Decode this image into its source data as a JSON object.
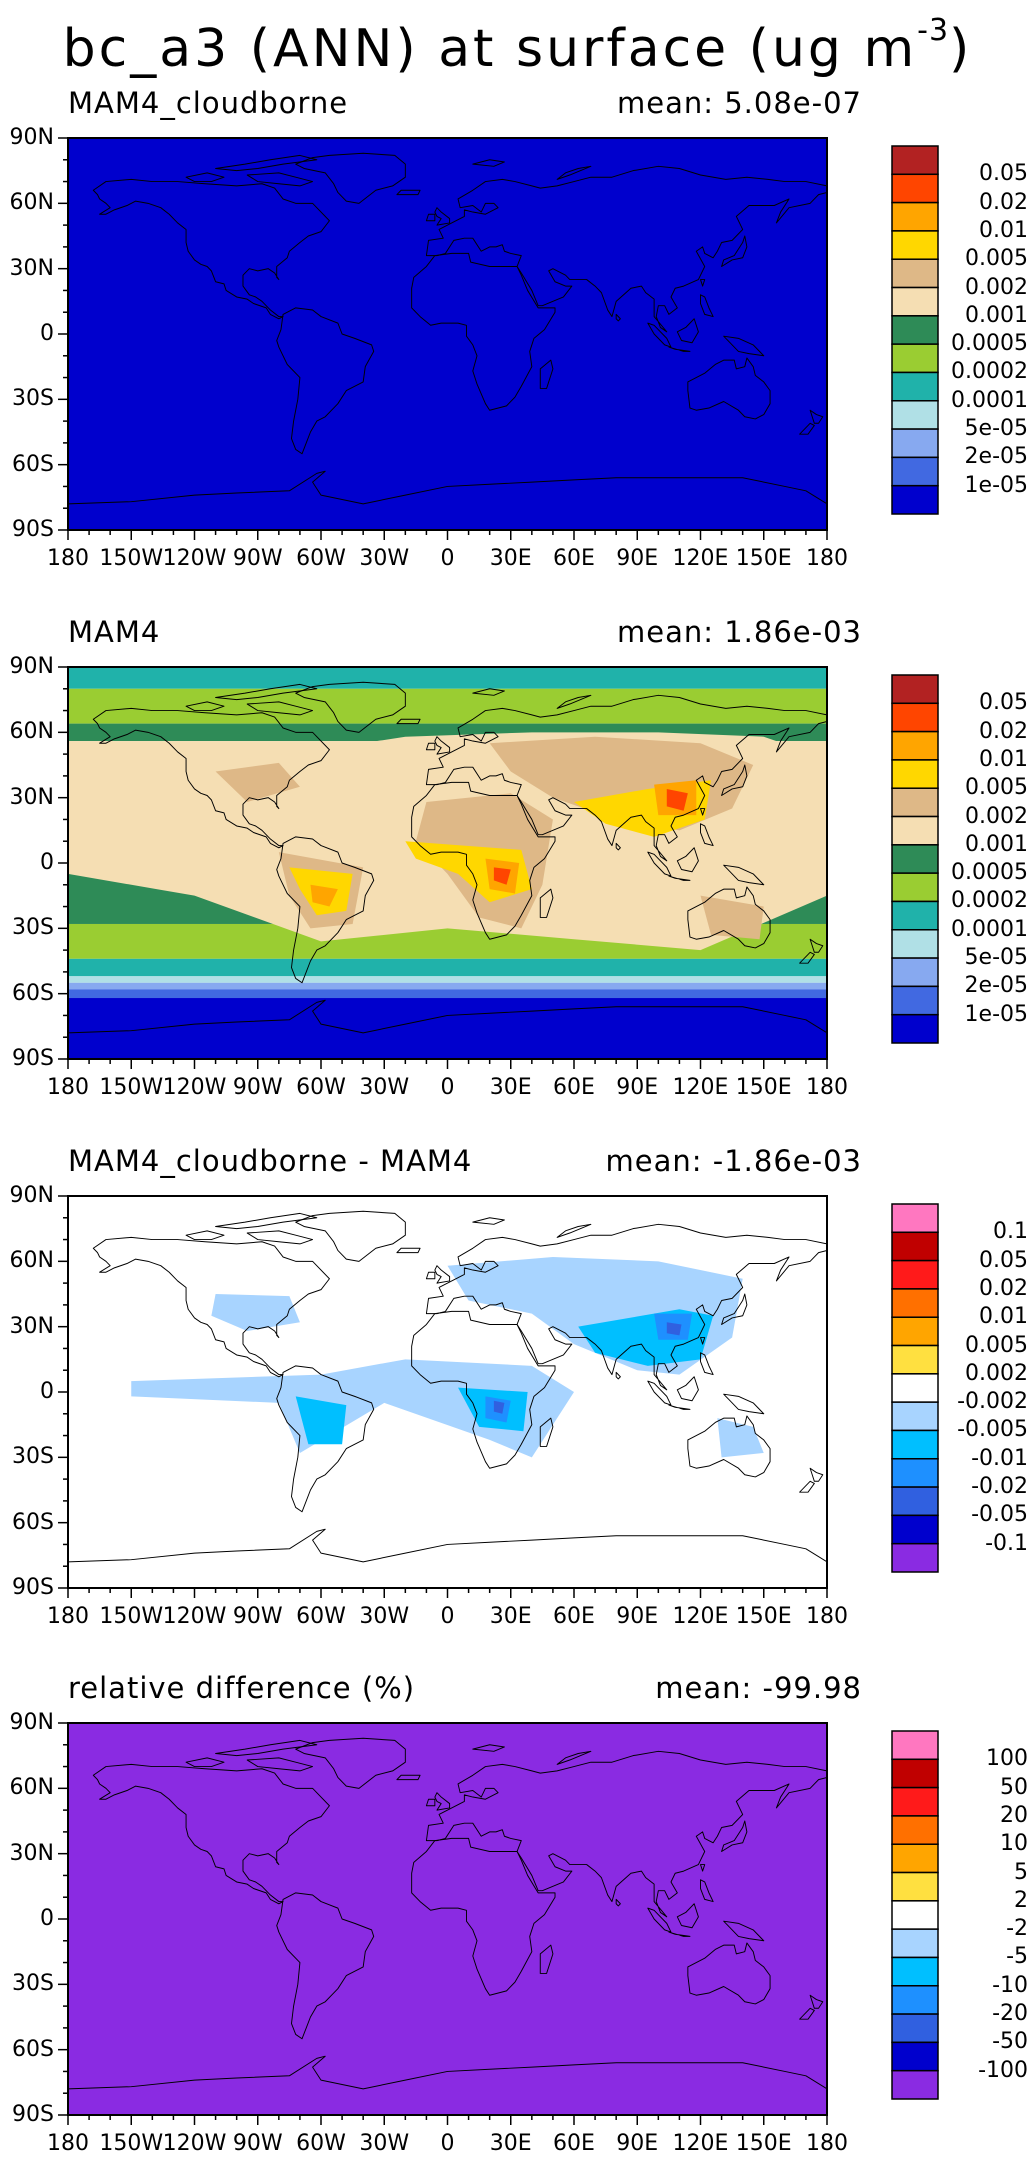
{
  "title": {
    "main": "bc_a3 (ANN) at surface (ug m",
    "exponent": "-3",
    "suffix": ")"
  },
  "lat_ticks": [
    "90N",
    "60N",
    "30N",
    "0",
    "30S",
    "60S",
    "90S"
  ],
  "lon_ticks": [
    "180",
    "150W",
    "120W",
    "90W",
    "60W",
    "30W",
    "0",
    "30E",
    "60E",
    "90E",
    "120E",
    "150E",
    "180"
  ],
  "panels": [
    {
      "title": "MAM4_cloudborne",
      "mean": "mean: 5.08e-07",
      "field": "uniform-low",
      "colorbar_labels": [
        "0.05",
        "0.02",
        "0.01",
        "0.005",
        "0.002",
        "0.001",
        "0.0005",
        "0.0002",
        "0.0001",
        "5e-05",
        "2e-05",
        "1e-05"
      ],
      "colorbar_colors": [
        "#b22222",
        "#ff4500",
        "#ffa500",
        "#ffd700",
        "#deb887",
        "#f5deb3",
        "#2e8b57",
        "#9acd32",
        "#20b2aa",
        "#b0e0e6",
        "#87a9f0",
        "#4169e1",
        "#0000cd"
      ]
    },
    {
      "title": "MAM4",
      "mean": "mean: 1.86e-03",
      "field": "concentration",
      "colorbar_labels": [
        "0.05",
        "0.02",
        "0.01",
        "0.005",
        "0.002",
        "0.001",
        "0.0005",
        "0.0002",
        "0.0001",
        "5e-05",
        "2e-05",
        "1e-05"
      ],
      "colorbar_colors": [
        "#b22222",
        "#ff4500",
        "#ffa500",
        "#ffd700",
        "#deb887",
        "#f5deb3",
        "#2e8b57",
        "#9acd32",
        "#20b2aa",
        "#b0e0e6",
        "#87a9f0",
        "#4169e1",
        "#0000cd"
      ]
    },
    {
      "title": "MAM4_cloudborne - MAM4",
      "mean": "mean: -1.86e-03",
      "field": "difference",
      "colorbar_labels": [
        "0.1",
        "0.05",
        "0.02",
        "0.01",
        "0.005",
        "0.002",
        "-0.002",
        "-0.005",
        "-0.01",
        "-0.02",
        "-0.05",
        "-0.1"
      ],
      "colorbar_colors": [
        "#ff77c0",
        "#c00000",
        "#ff1a1a",
        "#ff7000",
        "#ffa500",
        "#ffe040",
        "#ffffff",
        "#a8d4ff",
        "#00bfff",
        "#1e90ff",
        "#3060e0",
        "#0000cd",
        "#8a2be2"
      ]
    },
    {
      "title": "relative difference (%)",
      "mean": "mean: -99.98",
      "field": "uniform-low",
      "colorbar_labels": [
        "100",
        "50",
        "20",
        "10",
        "5",
        "2",
        "-2",
        "-5",
        "-10",
        "-20",
        "-50",
        "-100"
      ],
      "colorbar_colors": [
        "#ff77c0",
        "#c00000",
        "#ff1a1a",
        "#ff7000",
        "#ffa500",
        "#ffe040",
        "#ffffff",
        "#a8d4ff",
        "#00bfff",
        "#1e90ff",
        "#3060e0",
        "#0000cd",
        "#8a2be2"
      ]
    }
  ]
}
